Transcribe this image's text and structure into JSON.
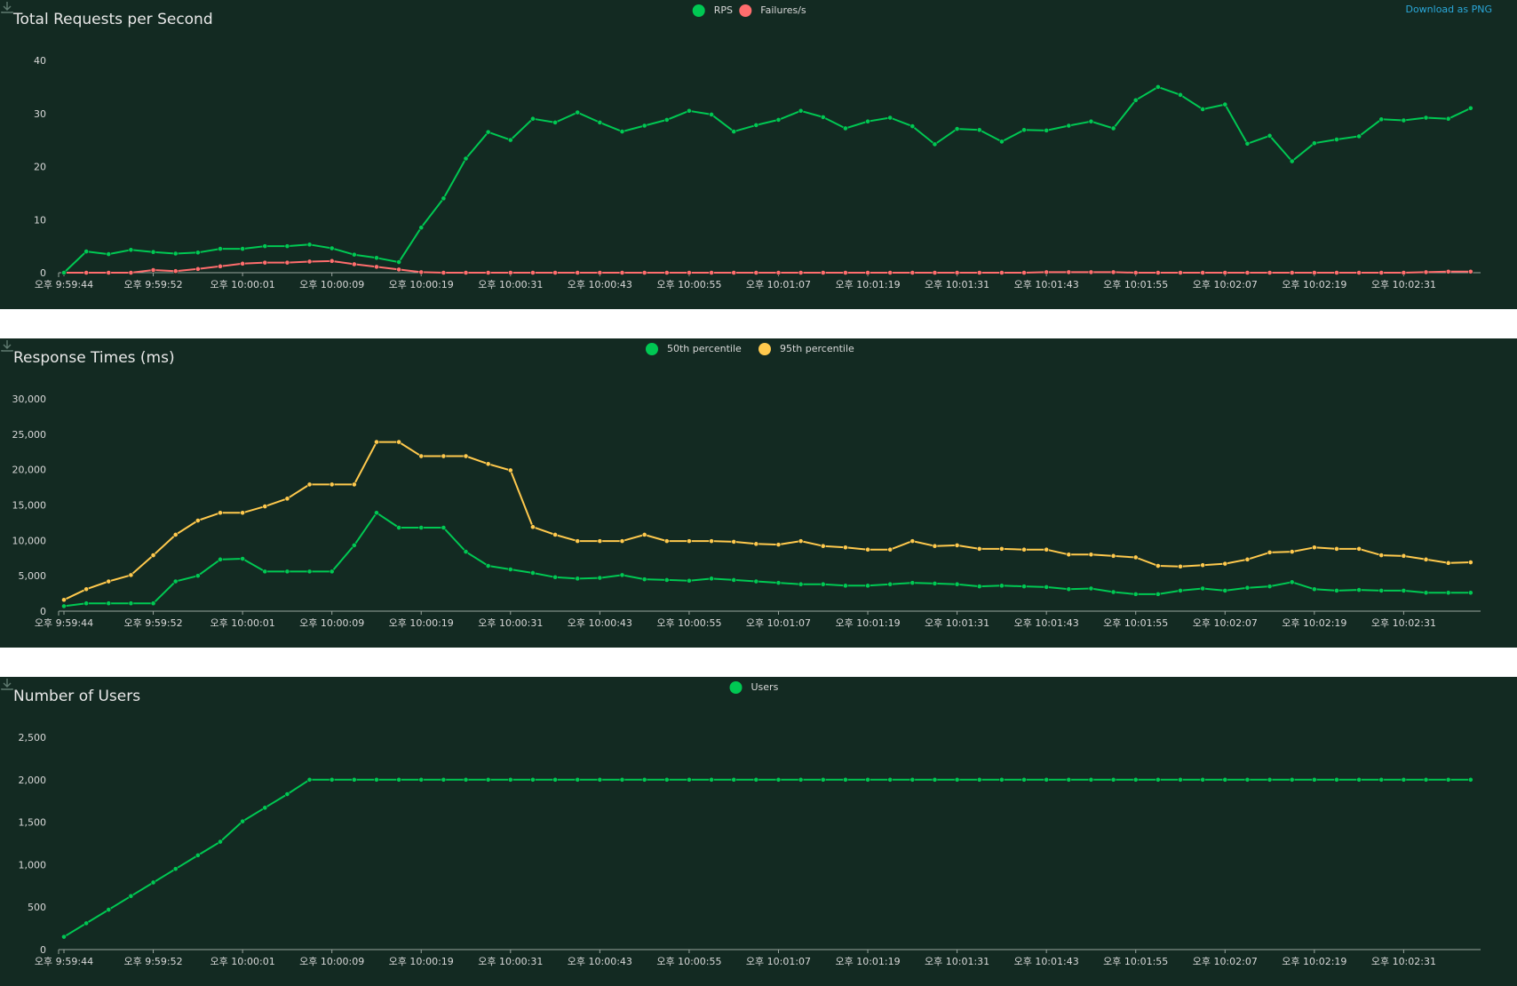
{
  "download_label": "Download as PNG",
  "x_ticks": [
    "오후 9:59:44",
    "오후 9:59:52",
    "오후 10:00:01",
    "오후 10:00:09",
    "오후 10:00:19",
    "오후 10:00:31",
    "오후 10:00:43",
    "오후 10:00:55",
    "오후 10:01:07",
    "오후 10:01:19",
    "오후 10:01:31",
    "오후 10:01:43",
    "오후 10:01:55",
    "오후 10:02:07",
    "오후 10:02:19",
    "오후 10:02:31"
  ],
  "colors": {
    "green": "#00c853",
    "red": "#ff6d6d",
    "yellow": "#ffc94d",
    "text": "#d8d8d8",
    "background": "#132a22"
  },
  "chart_data": [
    {
      "type": "line",
      "title": "Total Requests per Second",
      "ylim": [
        0,
        40
      ],
      "yticks": [
        0,
        10,
        20,
        30,
        40
      ],
      "grid": false,
      "legend_position": "top-center",
      "series": [
        {
          "name": "RPS",
          "color": "#00c853",
          "values": [
            0,
            4,
            3.5,
            4.3,
            3.9,
            3.6,
            3.8,
            4.5,
            4.5,
            5,
            5,
            5.3,
            4.6,
            3.4,
            2.8,
            2,
            8.5,
            14,
            21.5,
            26.5,
            25,
            29,
            28.3,
            30.2,
            28.3,
            26.6,
            27.7,
            28.8,
            30.5,
            29.8,
            26.6,
            27.8,
            28.8,
            30.5,
            29.3,
            27.2,
            28.5,
            29.2,
            27.6,
            24.2,
            27.1,
            26.9,
            24.7,
            26.9,
            26.8,
            27.7,
            28.5,
            27.2,
            32.5,
            35,
            33.5,
            30.8,
            31.7,
            24.3,
            25.8,
            21,
            24.4,
            25.1,
            25.7,
            28.9,
            28.7,
            29.2,
            29,
            31
          ]
        },
        {
          "name": "Failures/s",
          "color": "#ff6d6d",
          "values": [
            0,
            0,
            0,
            0,
            0.5,
            0.3,
            0.7,
            1.2,
            1.7,
            1.9,
            1.9,
            2.1,
            2.2,
            1.6,
            1.1,
            0.6,
            0.1,
            0,
            0,
            0,
            0,
            0,
            0,
            0,
            0,
            0,
            0,
            0,
            0,
            0,
            0,
            0,
            0,
            0,
            0,
            0,
            0,
            0,
            0,
            0,
            0,
            0,
            0,
            0,
            0.1,
            0.1,
            0.1,
            0.1,
            0,
            0,
            0,
            0,
            0,
            0,
            0,
            0,
            0,
            0,
            0,
            0,
            0,
            0.1,
            0.2,
            0.2
          ]
        }
      ]
    },
    {
      "type": "line",
      "title": "Response Times (ms)",
      "ylim": [
        0,
        30000
      ],
      "yticks": [
        0,
        5000,
        10000,
        15000,
        20000,
        25000,
        30000
      ],
      "ytick_labels": [
        "0",
        "5,000",
        "10,000",
        "15,000",
        "20,000",
        "25,000",
        "30,000"
      ],
      "grid": false,
      "legend_position": "top-center",
      "series": [
        {
          "name": "50th percentile",
          "color": "#00c853",
          "values": [
            700,
            1100,
            1100,
            1100,
            1100,
            4200,
            5000,
            7300,
            7400,
            5600,
            5600,
            5600,
            5600,
            9300,
            13900,
            11800,
            11800,
            11800,
            8400,
            6400,
            5900,
            5400,
            4800,
            4600,
            4700,
            5100,
            4500,
            4400,
            4300,
            4600,
            4400,
            4200,
            4000,
            3800,
            3800,
            3600,
            3600,
            3800,
            4000,
            3900,
            3800,
            3500,
            3600,
            3500,
            3400,
            3100,
            3200,
            2700,
            2400,
            2400,
            2900,
            3200,
            2900,
            3300,
            3500,
            4100,
            3100,
            2900,
            3000,
            2900,
            2900,
            2600,
            2600,
            2600
          ]
        },
        {
          "name": "95th percentile",
          "color": "#ffc94d",
          "values": [
            1600,
            3100,
            4200,
            5100,
            7900,
            10800,
            12800,
            13900,
            13900,
            14800,
            15900,
            17900,
            17900,
            17900,
            23900,
            23900,
            21900,
            21900,
            21900,
            20800,
            19900,
            11900,
            10800,
            9900,
            9900,
            9900,
            10800,
            9900,
            9900,
            9900,
            9800,
            9500,
            9400,
            9900,
            9200,
            9000,
            8700,
            8700,
            9900,
            9200,
            9300,
            8800,
            8800,
            8700,
            8700,
            8000,
            8000,
            7800,
            7600,
            6400,
            6300,
            6500,
            6700,
            7300,
            8300,
            8400,
            9000,
            8800,
            8800,
            7900,
            7800,
            7300,
            6800,
            6900
          ]
        }
      ]
    },
    {
      "type": "line",
      "title": "Number of Users",
      "ylim": [
        0,
        2500
      ],
      "yticks": [
        0,
        500,
        1000,
        1500,
        2000,
        2500
      ],
      "ytick_labels": [
        "0",
        "500",
        "1,000",
        "1,500",
        "2,000",
        "2,500"
      ],
      "grid": false,
      "legend_position": "top-center",
      "series": [
        {
          "name": "Users",
          "color": "#00c853",
          "values": [
            150,
            310,
            470,
            630,
            790,
            950,
            1110,
            1270,
            1510,
            1670,
            1830,
            2000,
            2000,
            2000,
            2000,
            2000,
            2000,
            2000,
            2000,
            2000,
            2000,
            2000,
            2000,
            2000,
            2000,
            2000,
            2000,
            2000,
            2000,
            2000,
            2000,
            2000,
            2000,
            2000,
            2000,
            2000,
            2000,
            2000,
            2000,
            2000,
            2000,
            2000,
            2000,
            2000,
            2000,
            2000,
            2000,
            2000,
            2000,
            2000,
            2000,
            2000,
            2000,
            2000,
            2000,
            2000,
            2000,
            2000,
            2000,
            2000,
            2000,
            2000,
            2000,
            2000
          ]
        }
      ]
    }
  ]
}
